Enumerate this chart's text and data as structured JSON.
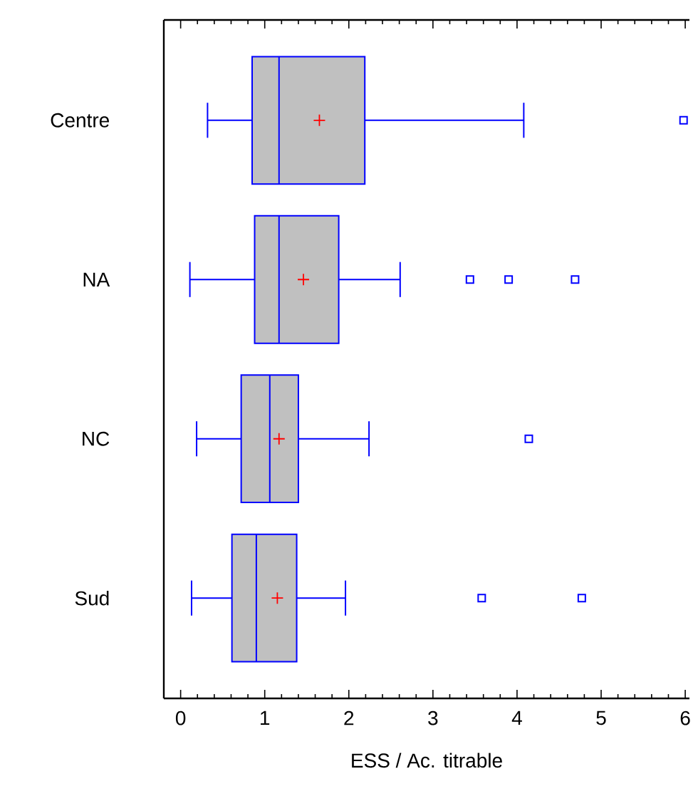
{
  "chart_data": {
    "type": "box",
    "orientation": "horizontal",
    "categories": [
      "Centre",
      "NA",
      "NC",
      "Sud"
    ],
    "xlabel": "ESS / Ac. titrable",
    "xlim": [
      -0.2,
      6.05
    ],
    "xticks": [
      0,
      1,
      2,
      3,
      4,
      5,
      6
    ],
    "color": "#c0c0c0",
    "grid": false,
    "boxes": [
      {
        "low": 0.32,
        "q1": 0.85,
        "median": 1.17,
        "q3": 2.19,
        "high": 4.08,
        "mean": 1.65,
        "outliers": [
          5.98
        ]
      },
      {
        "low": 0.11,
        "q1": 0.88,
        "median": 1.17,
        "q3": 1.88,
        "high": 2.61,
        "mean": 1.46,
        "outliers": [
          3.44,
          3.9,
          4.69
        ]
      },
      {
        "low": 0.19,
        "q1": 0.72,
        "median": 1.06,
        "q3": 1.4,
        "high": 2.24,
        "mean": 1.17,
        "outliers": [
          4.14
        ]
      },
      {
        "low": 0.13,
        "q1": 0.61,
        "median": 0.9,
        "q3": 1.38,
        "high": 1.96,
        "mean": 1.15,
        "outliers": [
          3.58,
          4.77
        ]
      }
    ]
  }
}
